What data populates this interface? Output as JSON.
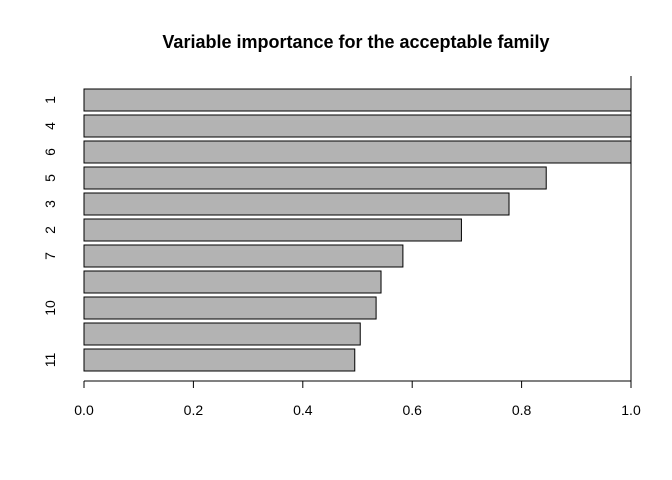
{
  "chart_data": {
    "type": "bar",
    "orientation": "horizontal",
    "title": "Variable importance for the acceptable family",
    "xlabel": "",
    "ylabel": "",
    "xlim": [
      0,
      1
    ],
    "x_ticks": [
      "0.0",
      "0.2",
      "0.4",
      "0.6",
      "0.8",
      "1.0"
    ],
    "x_tick_values": [
      0,
      0.2,
      0.4,
      0.6,
      0.8,
      1.0
    ],
    "bar_fill": "#b3b3b3",
    "bars": [
      {
        "label": "1",
        "value": 1.0
      },
      {
        "label": "4",
        "value": 1.0
      },
      {
        "label": "6",
        "value": 1.0
      },
      {
        "label": "5",
        "value": 0.845
      },
      {
        "label": "3",
        "value": 0.777
      },
      {
        "label": "2",
        "value": 0.69
      },
      {
        "label": "7",
        "value": 0.583
      },
      {
        "label": "",
        "value": 0.543
      },
      {
        "label": "10",
        "value": 0.534
      },
      {
        "label": "",
        "value": 0.505
      },
      {
        "label": "11",
        "value": 0.495
      }
    ]
  }
}
